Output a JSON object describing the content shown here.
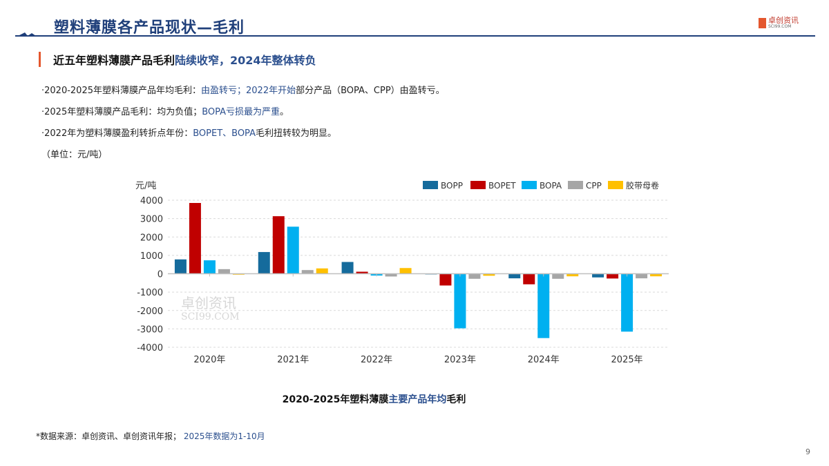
{
  "header": {
    "title": "塑料薄膜各产品现状—毛利",
    "logo_text": "卓创资讯",
    "logo_sub": "SCI99.COM"
  },
  "subheading": {
    "part1": "近五年塑料薄膜产品毛利",
    "part2": "陆续收窄，2024年整体转负"
  },
  "bullets": [
    {
      "a": "·2020-2025年塑料薄膜产品年均毛利：",
      "b": "由盈转亏；2022年开始",
      "c": "部分产品（BOPA、CPP）由盈转亏。"
    },
    {
      "a": "·2025年塑料薄膜产品毛利：均为负值；",
      "b": "BOPA亏损最为严重",
      "c": "。"
    },
    {
      "a": "·2022年为塑料薄膜盈利转折点年份：",
      "b": "BOPET、BOPA",
      "c": "毛利扭转较为明显。"
    }
  ],
  "unit_note": "（单位：元/吨）",
  "chart_data": {
    "type": "bar",
    "title": "2020-2025年塑料薄膜主要产品年均毛利",
    "title_parts": {
      "a": "2020-2025年塑料薄膜",
      "b": "主要产品年均",
      "c": "毛利"
    },
    "ylabel": "元/吨",
    "ylim": [
      -4000,
      4000
    ],
    "yticks": [
      4000,
      3000,
      2000,
      1000,
      0,
      -1000,
      -2000,
      -3000,
      -4000
    ],
    "grid": true,
    "legend_position": "top-right",
    "categories": [
      "2020年",
      "2021年",
      "2022年",
      "2023年",
      "2024年",
      "2025年"
    ],
    "series": [
      {
        "name": "BOPP",
        "color": "#156b9c",
        "values": [
          780,
          1180,
          640,
          -10,
          -250,
          -200
        ]
      },
      {
        "name": "BOPET",
        "color": "#c00000",
        "values": [
          3850,
          3130,
          110,
          -640,
          -575,
          -260
        ]
      },
      {
        "name": "BOPA",
        "color": "#00b0f0",
        "values": [
          730,
          2560,
          -100,
          -2970,
          -3500,
          -3150
        ]
      },
      {
        "name": "CPP",
        "color": "#a6a6a6",
        "values": [
          250,
          200,
          -150,
          -275,
          -275,
          -250
        ]
      },
      {
        "name": "胶带母卷",
        "color": "#ffc000",
        "values": [
          -50,
          290,
          310,
          -110,
          -140,
          -140
        ]
      }
    ]
  },
  "footer": {
    "source": "*数据来源：卓创资讯、卓创资讯年报；",
    "note": "2025年数据为1-10月",
    "page": "9"
  },
  "watermark": {
    "text": "卓创资讯",
    "sub": "SCI99.COM"
  }
}
